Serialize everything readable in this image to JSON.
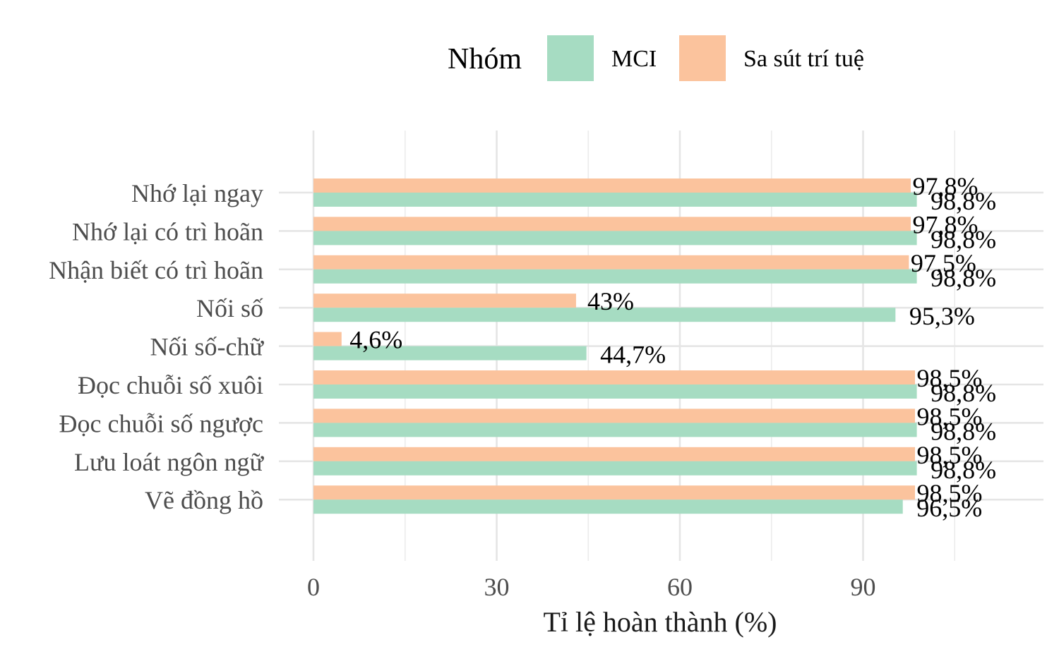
{
  "chart_data": {
    "type": "bar",
    "orientation": "horizontal",
    "categories": [
      "Nhớ lại ngay",
      "Nhớ lại có trì hoãn",
      "Nhận biết có trì hoãn",
      "Nối số",
      "Nối số-chữ",
      "Đọc chuỗi số xuôi",
      "Đọc chuỗi số ngược",
      "Lưu loát ngôn ngữ",
      "Vẽ đồng hồ"
    ],
    "series": [
      {
        "name": "MCI",
        "color": "#a6dcc2",
        "values": [
          98.8,
          98.8,
          98.8,
          95.3,
          44.7,
          98.8,
          98.8,
          98.8,
          96.5
        ],
        "labels": [
          "98,8%",
          "98,8%",
          "98,8%",
          "95,3%",
          "44,7%",
          "98,8%",
          "98,8%",
          "98,8%",
          "96,5%"
        ]
      },
      {
        "name": "Sa sút trí tuệ",
        "color": "#fbc39d",
        "values": [
          97.8,
          97.8,
          97.5,
          43,
          4.6,
          98.5,
          98.5,
          98.5,
          98.5
        ],
        "labels": [
          "97,8%",
          "97,8%",
          "97,5%",
          "43%",
          "4,6%",
          "98,5%",
          "98,5%",
          "98,5%",
          "98,5%"
        ]
      }
    ],
    "xlabel": "Tỉ lệ hoàn thành (%)",
    "ylabel": "",
    "xlim": [
      0,
      104
    ],
    "xticks": [
      "0",
      "30",
      "60",
      "90"
    ],
    "legend": {
      "title": "Nhóm",
      "position": "top"
    },
    "grid": true
  }
}
